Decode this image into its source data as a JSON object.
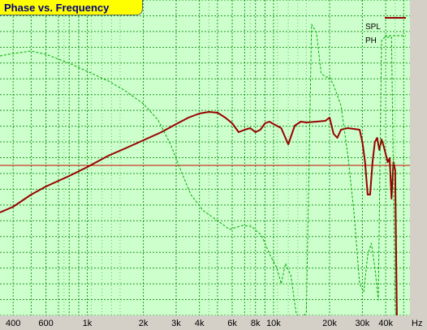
{
  "window": {
    "tab_title": "Phase vs. Frequency"
  },
  "colors": {
    "plot_bg": "#ccffcc",
    "grid": "#008000",
    "spl": "#990000",
    "phase": "#00aa00",
    "reference_line": "#cc0000",
    "tab_bg": "#ffff00",
    "tab_text": "#000080"
  },
  "chart_data": {
    "type": "line",
    "title": "Phase vs. Frequency",
    "x_scale": "log",
    "xlim": [
      340,
      54000
    ],
    "x_tick_labels": [
      {
        "value": 400,
        "text": "400"
      },
      {
        "value": 600,
        "text": "600"
      },
      {
        "value": 1000,
        "text": "1k"
      },
      {
        "value": 2000,
        "text": "2k"
      },
      {
        "value": 3000,
        "text": "3k"
      },
      {
        "value": 4000,
        "text": "4k"
      },
      {
        "value": 6000,
        "text": "6k"
      },
      {
        "value": 8000,
        "text": "8k"
      },
      {
        "value": 10000,
        "text": "10k"
      },
      {
        "value": 20000,
        "text": "20k"
      },
      {
        "value": 30000,
        "text": "30k"
      },
      {
        "value": 40000,
        "text": "40k"
      }
    ],
    "x_unit_label": "Hz",
    "grid": true,
    "legend_position": "top-right",
    "series": [
      {
        "name": "SPL",
        "style": "solid",
        "points": [
          [
            340,
            262
          ],
          [
            400,
            255
          ],
          [
            500,
            240
          ],
          [
            600,
            230
          ],
          [
            800,
            217
          ],
          [
            1000,
            206
          ],
          [
            1300,
            192
          ],
          [
            1600,
            183
          ],
          [
            2000,
            173
          ],
          [
            2500,
            163
          ],
          [
            3000,
            153
          ],
          [
            3500,
            145
          ],
          [
            4000,
            140
          ],
          [
            4500,
            138
          ],
          [
            5000,
            139
          ],
          [
            5500,
            145
          ],
          [
            6000,
            152
          ],
          [
            6500,
            163
          ],
          [
            7000,
            160
          ],
          [
            7500,
            158
          ],
          [
            8000,
            163
          ],
          [
            8500,
            160
          ],
          [
            9000,
            152
          ],
          [
            9500,
            150
          ],
          [
            10000,
            153
          ],
          [
            11000,
            158
          ],
          [
            12000,
            178
          ],
          [
            13000,
            155
          ],
          [
            14000,
            150
          ],
          [
            15000,
            151
          ],
          [
            17000,
            150
          ],
          [
            19000,
            149
          ],
          [
            20000,
            145
          ],
          [
            21000,
            165
          ],
          [
            22000,
            170
          ],
          [
            23000,
            160
          ],
          [
            25000,
            158
          ],
          [
            27000,
            159
          ],
          [
            29000,
            160
          ],
          [
            30000,
            175
          ],
          [
            31000,
            200
          ],
          [
            32000,
            240
          ],
          [
            33000,
            240
          ],
          [
            34000,
            200
          ],
          [
            35000,
            175
          ],
          [
            36000,
            170
          ],
          [
            37000,
            185
          ],
          [
            38000,
            172
          ],
          [
            39000,
            180
          ],
          [
            40000,
            190
          ],
          [
            41000,
            200
          ],
          [
            42000,
            195
          ],
          [
            43000,
            245
          ],
          [
            44000,
            200
          ],
          [
            45000,
            210
          ],
          [
            46000,
            400
          ]
        ]
      },
      {
        "name": "PH",
        "style": "dashed",
        "points": [
          [
            340,
            69
          ],
          [
            400,
            66
          ],
          [
            500,
            63
          ],
          [
            600,
            67
          ],
          [
            800,
            78
          ],
          [
            1000,
            88
          ],
          [
            1300,
            100
          ],
          [
            1600,
            112
          ],
          [
            2000,
            128
          ],
          [
            2400,
            148
          ],
          [
            2800,
            178
          ],
          [
            3200,
            212
          ],
          [
            3600,
            240
          ],
          [
            4200,
            260
          ],
          [
            5000,
            272
          ],
          [
            5800,
            283
          ],
          [
            6800,
            278
          ],
          [
            7600,
            279
          ],
          [
            8600,
            290
          ],
          [
            9600,
            315
          ],
          [
            10400,
            330
          ],
          [
            11000,
            350
          ],
          [
            11600,
            325
          ],
          [
            12400,
            340
          ],
          [
            13200,
            385
          ],
          [
            14000,
            395
          ],
          [
            15000,
            385
          ],
          [
            16000,
            30
          ],
          [
            17000,
            40
          ],
          [
            18000,
            90
          ],
          [
            19000,
            95
          ],
          [
            20000,
            95
          ],
          [
            21000,
            105
          ],
          [
            23000,
            130
          ],
          [
            25000,
            190
          ],
          [
            27000,
            260
          ],
          [
            29000,
            350
          ],
          [
            30500,
            360
          ],
          [
            32000,
            315
          ],
          [
            33500,
            300
          ],
          [
            35000,
            330
          ],
          [
            36500,
            370
          ],
          [
            38000,
            50
          ],
          [
            39500,
            46
          ],
          [
            41000,
            46
          ],
          [
            43000,
            46
          ],
          [
            45000,
            380
          ],
          [
            46000,
            400
          ]
        ]
      }
    ],
    "reference_line": {
      "style": "horizontal",
      "color": "#cc0000"
    }
  }
}
